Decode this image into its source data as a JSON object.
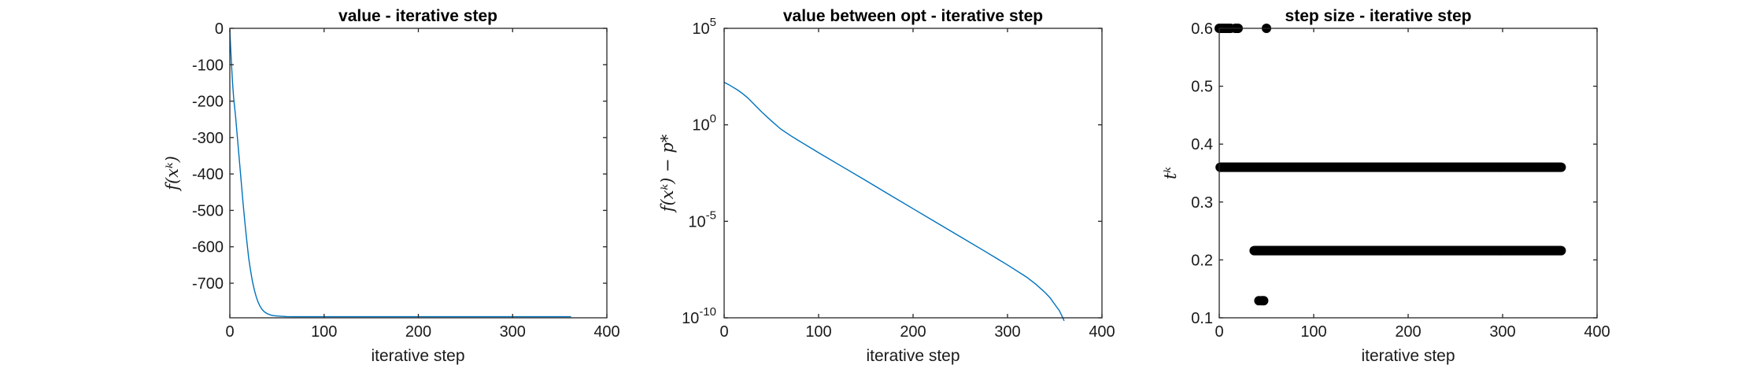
{
  "chart_data": [
    {
      "type": "line",
      "title": "value  - iterative step",
      "xlabel": "iterative step",
      "ylabel": "f(xᵏ)",
      "xlim": [
        0,
        400
      ],
      "ylim": [
        -795,
        0
      ],
      "xticks": [
        0,
        100,
        200,
        300,
        400
      ],
      "xtick_labels": [
        "0",
        "100",
        "200",
        "300",
        "400"
      ],
      "yticks": [
        0,
        -100,
        -200,
        -300,
        -400,
        -500,
        -600,
        -700
      ],
      "ytick_labels": [
        "0",
        "-100",
        "-200",
        "-300",
        "-400",
        "-500",
        "-600",
        "-700"
      ],
      "line_color": "#0072BD",
      "series": [
        {
          "x": [
            0,
            1,
            2,
            3,
            4,
            5,
            6,
            8,
            10,
            12,
            14,
            16,
            18,
            20,
            22,
            24,
            26,
            28,
            30,
            32,
            34,
            36,
            38,
            40,
            43,
            46,
            50,
            55,
            60,
            70,
            80,
            100,
            150,
            200,
            250,
            300,
            362
          ],
          "y": [
            -5,
            -60,
            -110,
            -155,
            -190,
            -215,
            -240,
            -300,
            -360,
            -420,
            -480,
            -535,
            -585,
            -630,
            -665,
            -695,
            -718,
            -737,
            -752,
            -763,
            -771,
            -777,
            -781,
            -784,
            -787,
            -789,
            -790,
            -791,
            -791.5,
            -792,
            -792,
            -792,
            -792,
            -792,
            -792,
            -792,
            -792
          ]
        }
      ]
    },
    {
      "type": "line",
      "title": "value between opt - iterative step",
      "xlabel": "iterative step",
      "ylabel": "f(xᵏ) − p*",
      "yscale": "log",
      "xlim": [
        0,
        400
      ],
      "ylim": [
        1e-10,
        100000.0
      ],
      "xticks": [
        0,
        100,
        200,
        300,
        400
      ],
      "xtick_labels": [
        "0",
        "100",
        "200",
        "300",
        "400"
      ],
      "yticks": [
        100000.0,
        1,
        1e-05,
        1e-10
      ],
      "ytick_bases": [
        "10",
        "10",
        "10",
        "10"
      ],
      "ytick_exponents": [
        "5",
        "0",
        "-5",
        "-10"
      ],
      "line_color": "#0072BD",
      "series": [
        {
          "x": [
            0,
            5,
            10,
            15,
            20,
            25,
            30,
            40,
            50,
            60,
            70,
            80,
            100,
            125,
            150,
            175,
            200,
            225,
            250,
            275,
            300,
            320,
            330,
            340,
            345,
            350,
            355,
            360
          ],
          "y": [
            160,
            120,
            85,
            60,
            40,
            25,
            14,
            4.5,
            1.6,
            0.6,
            0.28,
            0.14,
            0.036,
            0.0068,
            0.0013,
            0.00024,
            4.5e-05,
            8.5e-06,
            1.6e-06,
            3e-07,
            5.5e-08,
            1.3e-08,
            5.5e-09,
            2e-09,
            1.1e-09,
            5e-10,
            2.3e-10,
            7e-11
          ]
        }
      ]
    },
    {
      "type": "scatter",
      "title": "step size - iterative step",
      "xlabel": "iterative step",
      "ylabel": "tᵏ",
      "xlim": [
        0,
        400
      ],
      "ylim": [
        0.1,
        0.6
      ],
      "xticks": [
        0,
        100,
        200,
        300,
        400
      ],
      "xtick_labels": [
        "0",
        "100",
        "200",
        "300",
        "400"
      ],
      "yticks": [
        0.1,
        0.2,
        0.3,
        0.4,
        0.5,
        0.6
      ],
      "ytick_labels": [
        "0.1",
        "0.2",
        "0.3",
        "0.4",
        "0.5",
        "0.6"
      ],
      "marker_color": "#000000",
      "series": [
        {
          "x": [
            0,
            2,
            4,
            6,
            8,
            10,
            12,
            17,
            18,
            19,
            20,
            50
          ],
          "y": [
            0.6,
            0.6,
            0.6,
            0.6,
            0.6,
            0.6,
            0.6,
            0.6,
            0.6,
            0.6,
            0.6,
            0.6
          ]
        },
        {
          "x_range": [
            1,
            362
          ],
          "y": 0.36
        },
        {
          "x_range": [
            37,
            362
          ],
          "y": 0.216
        },
        {
          "x": [
            42,
            45,
            47
          ],
          "y": [
            0.1296,
            0.1296,
            0.1296
          ]
        }
      ]
    }
  ]
}
